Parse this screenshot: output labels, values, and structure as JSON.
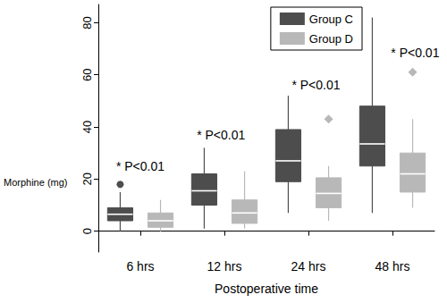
{
  "chart_data": {
    "type": "boxplot",
    "xlabel": "Postoperative time",
    "ylabel": "Morphine (mg)",
    "categories": [
      "6 hrs",
      "12 hrs",
      "24 hrs",
      "48 hrs"
    ],
    "series": [
      {
        "name": "Group C",
        "color": "#4d4d4d",
        "marker": "circle",
        "values": [
          [
            0,
            4,
            6.5,
            9,
            15
          ],
          [
            1,
            10,
            15.5,
            22,
            32
          ],
          [
            7,
            19,
            27,
            39,
            52
          ],
          [
            7,
            25,
            33.5,
            48,
            82
          ]
        ],
        "outliers": [
          [
            18
          ],
          [],
          [],
          []
        ]
      },
      {
        "name": "Group D",
        "color": "#b8b8b8",
        "marker": "diamond",
        "values": [
          [
            0,
            1.5,
            4,
            7,
            12
          ],
          [
            1,
            3,
            7,
            12,
            23
          ],
          [
            4,
            9,
            14.5,
            20.5,
            25
          ],
          [
            9,
            15,
            22,
            30,
            43
          ]
        ],
        "outliers": [
          [],
          [],
          [
            43
          ],
          [
            61
          ]
        ]
      }
    ],
    "annotations": [
      {
        "text": "* P<0.01",
        "x": 0,
        "y": 25
      },
      {
        "text": "* P<0.01",
        "x": 0.96,
        "y": 37
      },
      {
        "text": "* P<0.01",
        "x": 2.09,
        "y": 56
      },
      {
        "text": "* P<0.01",
        "x": 3.27,
        "y": 68.6
      }
    ],
    "ylim": [
      -8,
      87
    ],
    "yticks": [
      0,
      20,
      40,
      60,
      80
    ],
    "legend": "upper right",
    "grid": false
  }
}
